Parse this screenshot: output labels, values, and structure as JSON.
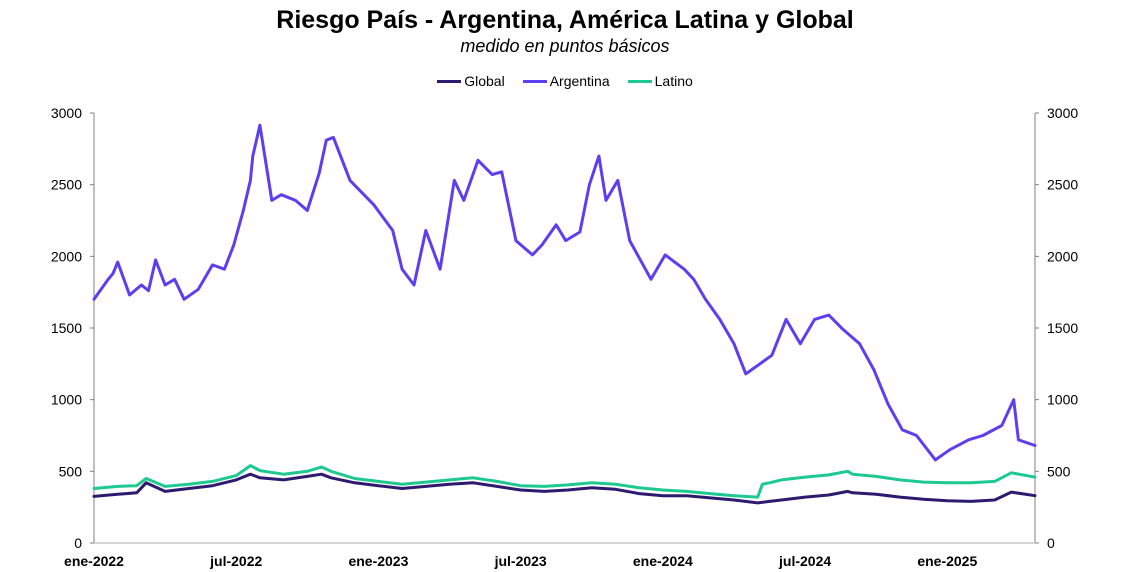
{
  "chart_data": {
    "type": "line",
    "title": "Riesgo País - Argentina, América Latina y Global",
    "subtitle": "medido en puntos básicos",
    "xlabel": "",
    "ylabel": "",
    "ylim": [
      0,
      3000
    ],
    "yticks": [
      "0",
      "500",
      "1000",
      "1500",
      "2000",
      "2500",
      "3000"
    ],
    "ytick_values": [
      0,
      500,
      1000,
      1500,
      2000,
      2500,
      3000
    ],
    "xticks": [
      "ene-2022",
      "jul-2022",
      "ene-2023",
      "jul-2023",
      "ene-2024",
      "jul-2024",
      "ene-2025"
    ],
    "xtick_months": [
      0,
      6,
      12,
      18,
      24,
      30,
      36
    ],
    "x_unit": "months since ene-2022",
    "xlim": [
      0,
      39.7
    ],
    "grid": false,
    "legend_position": "top-center",
    "series": [
      {
        "name": "Global",
        "color": "#2e1a6e",
        "x": [
          0,
          1,
          1.8,
          2.2,
          3,
          4,
          5,
          6,
          6.6,
          7,
          8,
          9,
          9.6,
          10,
          11,
          12,
          13,
          14,
          15,
          16,
          17,
          18,
          19,
          20,
          21,
          22,
          23,
          24,
          25,
          26,
          27,
          28,
          28.5,
          29,
          30,
          31,
          31.8,
          32,
          33,
          34,
          35,
          36,
          37,
          38,
          38.7,
          39.7
        ],
        "y": [
          325,
          340,
          350,
          420,
          360,
          380,
          400,
          440,
          480,
          455,
          440,
          465,
          480,
          455,
          420,
          400,
          380,
          395,
          410,
          420,
          395,
          370,
          360,
          370,
          385,
          375,
          345,
          330,
          330,
          315,
          300,
          280,
          290,
          300,
          320,
          335,
          360,
          350,
          340,
          320,
          305,
          295,
          290,
          300,
          355,
          330
        ]
      },
      {
        "name": "Argentina",
        "color": "#5b3ff0",
        "x": [
          0,
          0.6,
          0.8,
          1,
          1.5,
          2,
          2.3,
          2.6,
          3,
          3.4,
          3.8,
          4.4,
          5,
          5.5,
          5.9,
          6.3,
          6.6,
          6.7,
          7,
          7.5,
          7.9,
          8.5,
          9,
          9.5,
          9.8,
          10.1,
          10.8,
          11.8,
          12.6,
          13,
          13.5,
          14,
          14.6,
          15.2,
          15.6,
          16.2,
          16.8,
          17.2,
          17.8,
          18.5,
          18.9,
          19.5,
          19.9,
          20.5,
          20.9,
          21.3,
          21.6,
          22.1,
          22.6,
          23.5,
          24.1,
          24.9,
          25.3,
          25.8,
          26.4,
          27,
          27.5,
          28.1,
          28.6,
          29.2,
          29.8,
          30.4,
          31,
          31.6,
          32.3,
          32.9,
          33.5,
          34.1,
          34.7,
          35.5,
          36.1,
          36.9,
          37.5,
          38.3,
          38.8,
          39,
          39.7
        ],
        "y": [
          1700,
          1840,
          1880,
          1960,
          1730,
          1800,
          1760,
          1975,
          1800,
          1840,
          1700,
          1770,
          1940,
          1910,
          2080,
          2320,
          2530,
          2700,
          2915,
          2390,
          2430,
          2390,
          2320,
          2580,
          2810,
          2830,
          2530,
          2360,
          2180,
          1910,
          1800,
          2180,
          1910,
          2530,
          2390,
          2670,
          2570,
          2590,
          2110,
          2010,
          2080,
          2220,
          2110,
          2170,
          2500,
          2700,
          2390,
          2530,
          2110,
          1840,
          2010,
          1910,
          1840,
          1700,
          1560,
          1390,
          1180,
          1250,
          1310,
          1560,
          1390,
          1560,
          1590,
          1490,
          1390,
          1210,
          970,
          790,
          750,
          580,
          650,
          720,
          750,
          820,
          1000,
          720,
          680
        ]
      },
      {
        "name": "Latino",
        "color": "#1dc98f",
        "x": [
          0,
          1,
          1.8,
          2.2,
          3,
          4,
          5,
          6,
          6.6,
          7,
          8,
          9,
          9.6,
          10,
          11,
          12,
          13,
          14,
          15,
          16,
          17,
          18,
          19,
          20,
          21,
          22,
          23,
          24,
          25,
          26,
          27,
          28,
          28.2,
          28.5,
          29,
          30,
          31,
          31.8,
          32,
          33,
          34,
          35,
          36,
          37,
          38,
          38.7,
          39.7
        ],
        "y": [
          380,
          395,
          400,
          450,
          395,
          410,
          430,
          470,
          540,
          505,
          480,
          500,
          530,
          500,
          450,
          430,
          410,
          425,
          440,
          455,
          430,
          400,
          395,
          405,
          420,
          410,
          385,
          370,
          360,
          345,
          330,
          320,
          410,
          420,
          440,
          460,
          475,
          500,
          480,
          465,
          440,
          425,
          420,
          420,
          430,
          490,
          460
        ]
      }
    ]
  }
}
